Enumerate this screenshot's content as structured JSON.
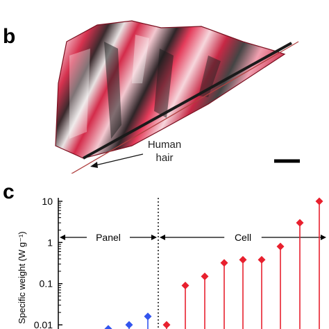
{
  "panel_b": {
    "letter": "b",
    "annotation_line1": "Human",
    "annotation_line2": "hair"
  },
  "panel_c": {
    "letter": "c"
  },
  "chart_data": {
    "type": "scatter",
    "style": "lollipop",
    "ylabel": "Specific weight (W g⁻¹)",
    "yscale": "log",
    "ylim": [
      0.01,
      10
    ],
    "y_tick_labels": [
      "10",
      "1",
      "0.1",
      "0.01"
    ],
    "y_tick_values": [
      10,
      1,
      0.1,
      0.01
    ],
    "grid": false,
    "regions": [
      {
        "label": "Panel"
      },
      {
        "label": "Cell"
      }
    ],
    "series": [
      {
        "color": "#3355ee",
        "marker": "diamond",
        "values": [
          0.008,
          0.01,
          0.016
        ]
      },
      {
        "color": "#e8202e",
        "marker": "diamond",
        "values": [
          0.01,
          0.09,
          0.15,
          0.32,
          0.38,
          0.38,
          0.8,
          3.0,
          10
        ]
      }
    ]
  }
}
